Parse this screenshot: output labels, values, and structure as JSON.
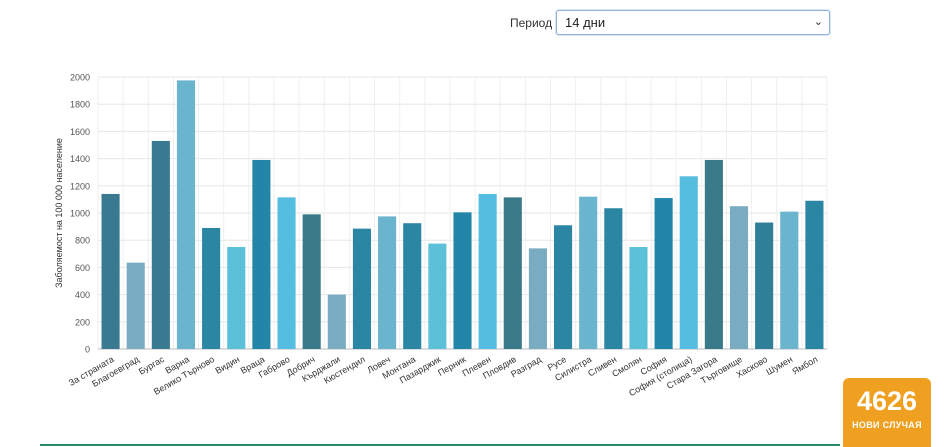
{
  "filter": {
    "label": "Период",
    "selected": "14 дни"
  },
  "badge": {
    "value": "4626",
    "label": "НОВИ СЛУЧАЯ"
  },
  "chart_data": {
    "type": "bar",
    "ylabel": "Заболяемост на 100 000 население",
    "ylim": [
      0,
      2000
    ],
    "yticks": [
      0,
      200,
      400,
      600,
      800,
      1000,
      1200,
      1400,
      1600,
      1800,
      2000
    ],
    "grid": true,
    "categories": [
      "За страната",
      "Благоевград",
      "Бургас",
      "Варна",
      "Велико Търново",
      "Видин",
      "Враца",
      "Габрово",
      "Добрич",
      "Кърджали",
      "Кюстендил",
      "Ловеч",
      "Монтана",
      "Пазарджик",
      "Перник",
      "Плевен",
      "Пловдив",
      "Разград",
      "Русе",
      "Силистра",
      "Сливен",
      "Смолян",
      "София",
      "София (столица)",
      "Стара Загора",
      "Търговище",
      "Хасково",
      "Шумен",
      "Ямбол"
    ],
    "values": [
      1140,
      635,
      1530,
      1975,
      890,
      750,
      1390,
      1115,
      990,
      400,
      885,
      975,
      925,
      775,
      1005,
      1140,
      1115,
      740,
      910,
      1120,
      1035,
      750,
      1110,
      1270,
      1390,
      1050,
      930,
      1010,
      1090
    ],
    "colors": [
      "#3a7a90",
      "#79acc0",
      "#3a7a90",
      "#6ab4ce",
      "#2b86a3",
      "#5cc0d8",
      "#2386a8",
      "#55bde0",
      "#3a7a88",
      "#79acc0",
      "#2b86a3",
      "#6ab4ce",
      "#2b86a3",
      "#5cc0d8",
      "#2386a8",
      "#55bde0",
      "#3a7a88",
      "#79acc0",
      "#2b86a3",
      "#6ab4ce",
      "#2b86a3",
      "#5cc0d8",
      "#2386a8",
      "#55bde0",
      "#3a7a88",
      "#79acc0",
      "#2f7f98",
      "#6ab4ce",
      "#2b86a3"
    ]
  }
}
